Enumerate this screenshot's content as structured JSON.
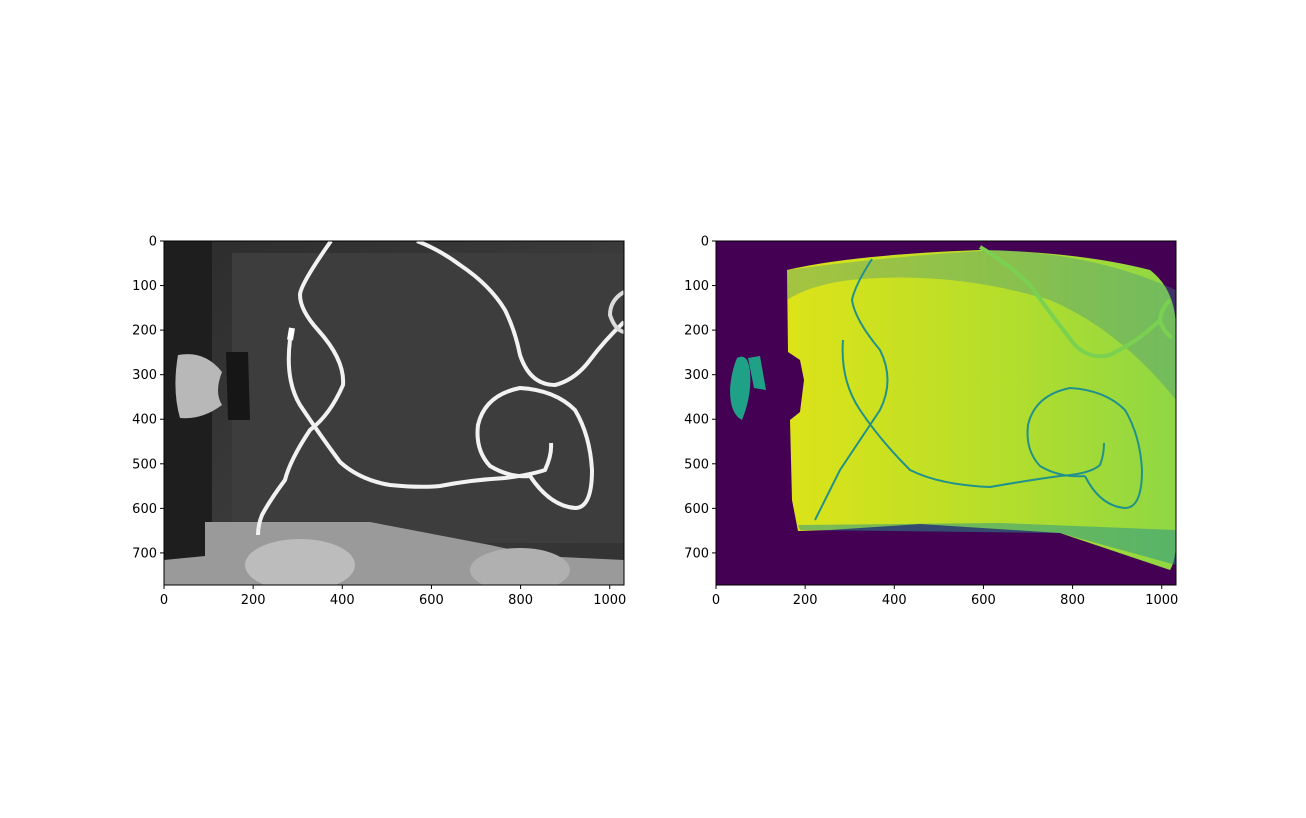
{
  "figure": {
    "background": "#ffffff",
    "panels": [
      {
        "id": "left",
        "kind": "grayscale-photo",
        "description_colors": {
          "bg_dark": "#2a2a2a",
          "bg_mid": "#4a4a4a",
          "cable": "#f2f2f2",
          "table": "#9a9a9a"
        },
        "xlim": [
          0,
          1032
        ],
        "ylim": [
          0,
          772
        ],
        "xticks": [
          {
            "value": 0,
            "label": "0"
          },
          {
            "value": 200,
            "label": "200"
          },
          {
            "value": 400,
            "label": "400"
          },
          {
            "value": 600,
            "label": "600"
          },
          {
            "value": 800,
            "label": "800"
          },
          {
            "value": 1000,
            "label": "1000"
          }
        ],
        "yticks": [
          {
            "value": 0,
            "label": "0"
          },
          {
            "value": 100,
            "label": "100"
          },
          {
            "value": 200,
            "label": "200"
          },
          {
            "value": 300,
            "label": "300"
          },
          {
            "value": 400,
            "label": "400"
          },
          {
            "value": 500,
            "label": "500"
          },
          {
            "value": 600,
            "label": "600"
          },
          {
            "value": 700,
            "label": "700"
          }
        ]
      },
      {
        "id": "right",
        "kind": "viridis-segmentation",
        "description_colors": {
          "background": "#440154",
          "surface": "#b5de2b",
          "surface_bright": "#dde318",
          "edge": "#21918c",
          "cable": "#7ad151",
          "object": "#1fa187"
        },
        "xlim": [
          0,
          1032
        ],
        "ylim": [
          0,
          772
        ],
        "xticks": [
          {
            "value": 0,
            "label": "0"
          },
          {
            "value": 200,
            "label": "200"
          },
          {
            "value": 400,
            "label": "400"
          },
          {
            "value": 600,
            "label": "600"
          },
          {
            "value": 800,
            "label": "800"
          },
          {
            "value": 1000,
            "label": "1000"
          }
        ],
        "yticks": [
          {
            "value": 0,
            "label": "0"
          },
          {
            "value": 100,
            "label": "100"
          },
          {
            "value": 200,
            "label": "200"
          },
          {
            "value": 300,
            "label": "300"
          },
          {
            "value": 400,
            "label": "400"
          },
          {
            "value": 500,
            "label": "500"
          },
          {
            "value": 600,
            "label": "600"
          },
          {
            "value": 700,
            "label": "700"
          }
        ]
      }
    ]
  }
}
